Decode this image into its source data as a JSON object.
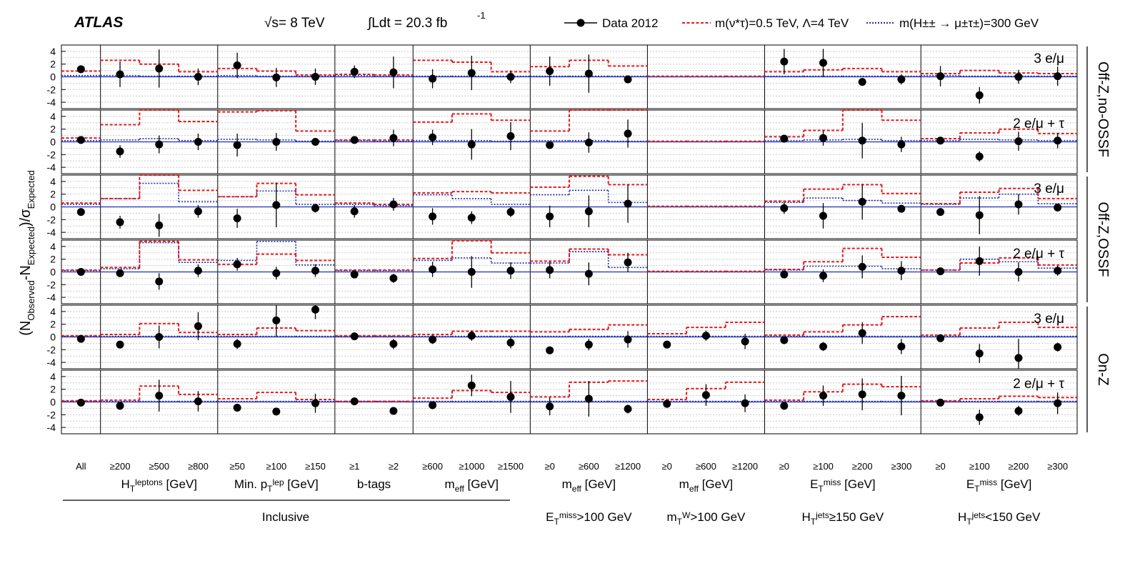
{
  "header": {
    "experiment": "ATLAS",
    "energy": "√s= 8 TeV",
    "lumi_prefix": "∫Ldt = 20.3 fb",
    "lumi_exp": "-1"
  },
  "legend": {
    "data": "Data 2012",
    "exstar": "m(ν*τ)=0.5 TeV,  Λ=4 TeV",
    "hpp": "m(H±± → μ±τ±)=300 GeV"
  },
  "colors": {
    "data": "#000000",
    "exstar": "#e41a1c",
    "hpp": "#1f2fb4",
    "zero_line": "#1f2fb4",
    "grid": "#c8c8c8"
  },
  "chart_data": {
    "type": "scatter",
    "ylabel": "(N_Observed - N_Expected)/σ_Expected",
    "ylim": [
      -5,
      5
    ],
    "yticks": [
      4,
      2,
      0,
      -2,
      -4
    ],
    "columns": [
      "All",
      "≥200",
      "≥500",
      "≥800",
      "≥50",
      "≥100",
      "≥150",
      "≥1",
      "≥2",
      "≥600",
      "≥1000",
      "≥1500",
      "≥0",
      "≥600",
      "≥1200",
      "≥0",
      "≥600",
      "≥1200",
      "≥0",
      "≥100",
      "≥200",
      "≥300",
      "≥0",
      "≥100",
      "≥200",
      "≥300"
    ],
    "groups": [
      {
        "label": "",
        "n": 1
      },
      {
        "label": "H_T^leptons [GeV]",
        "n": 3
      },
      {
        "label": "Min. p_T^lep [GeV]",
        "n": 3
      },
      {
        "label": "b-tags",
        "n": 2
      },
      {
        "label": "m_eff [GeV]",
        "n": 3
      },
      {
        "label": "m_eff [GeV]",
        "n": 3
      },
      {
        "label": "m_eff [GeV]",
        "n": 3
      },
      {
        "label": "E_T^miss [GeV]",
        "n": 4
      },
      {
        "label": "E_T^miss [GeV]",
        "n": 4
      }
    ],
    "categories": [
      "Inclusive",
      "E_T^miss>100 GeV",
      "m_T^W>100 GeV",
      "H_T^jets≥150 GeV",
      "H_T^jets<150 GeV"
    ],
    "row_groups": [
      "Off-Z,no-OSSF",
      "Off-Z,OSSF",
      "On-Z"
    ],
    "rows": [
      {
        "label": "3 e/μ",
        "data": [
          1.2,
          0.4,
          1.3,
          0.0,
          1.8,
          -0.1,
          0.0,
          0.8,
          0.7,
          -0.3,
          0.6,
          0.0,
          0.9,
          0.5,
          -0.4,
          null,
          null,
          null,
          2.4,
          2.2,
          -0.8,
          -0.4,
          0.1,
          -2.9,
          0.0,
          0.1
        ],
        "err": [
          0.5,
          2.0,
          3.0,
          1.3,
          2.0,
          1.5,
          1.3,
          1.0,
          2.5,
          1.5,
          2.7,
          1.0,
          2.3,
          3.0,
          0.6,
          null,
          null,
          null,
          2.0,
          2.2,
          0.6,
          0.8,
          1.6,
          1.3,
          1.1,
          1.5
        ],
        "exstar": [
          0.9,
          2.6,
          2.0,
          0.8,
          1.3,
          0.9,
          0.3,
          0.4,
          0.3,
          2.6,
          2.3,
          0.8,
          1.6,
          2.6,
          1.7,
          0.1,
          0.1,
          0.1,
          0.8,
          1.1,
          1.3,
          0.8,
          0.5,
          1.0,
          0.6,
          0.5
        ],
        "hpp": [
          0.2,
          0.2,
          0.1,
          0.1,
          0.2,
          0.1,
          0.1,
          0.2,
          0.1,
          0.1,
          0.1,
          0.1,
          0.1,
          0.1,
          0.1,
          0.0,
          0.0,
          0.0,
          0.1,
          0.1,
          0.1,
          0.1,
          0.2,
          0.1,
          0.1,
          0.1
        ]
      },
      {
        "label": "2 e/μ + τ",
        "data": [
          0.3,
          -1.5,
          -0.4,
          0.0,
          -0.5,
          0.0,
          0.0,
          0.3,
          0.6,
          0.7,
          -0.4,
          0.9,
          -0.5,
          -0.1,
          1.3,
          null,
          null,
          null,
          0.5,
          0.6,
          0.2,
          -0.4,
          0.2,
          -2.3,
          0.1,
          0.2
        ],
        "err": [
          0.5,
          1.0,
          1.4,
          1.3,
          1.8,
          1.4,
          0.6,
          0.5,
          1.3,
          1.2,
          2.4,
          2.2,
          0.6,
          1.6,
          2.2,
          null,
          null,
          null,
          0.5,
          1.2,
          2.8,
          1.2,
          0.5,
          0.8,
          1.5,
          1.2
        ],
        "exstar": [
          0.6,
          2.7,
          5.2,
          3.2,
          4.7,
          4.9,
          1.7,
          0.3,
          0.3,
          3.1,
          4.4,
          3.4,
          1.7,
          5.0,
          5.2,
          0.1,
          0.1,
          0.1,
          0.8,
          1.8,
          5.0,
          3.4,
          0.5,
          1.4,
          2.0,
          1.3
        ],
        "hpp": [
          0.2,
          0.3,
          0.5,
          0.2,
          0.4,
          0.3,
          0.1,
          0.2,
          0.1,
          0.2,
          0.2,
          0.1,
          0.2,
          0.2,
          0.1,
          0.0,
          0.0,
          0.0,
          0.2,
          0.3,
          0.4,
          0.2,
          0.2,
          0.4,
          0.3,
          0.2
        ]
      },
      {
        "label": "3 e/μ",
        "data": [
          -0.8,
          -2.4,
          -2.9,
          -0.7,
          -1.8,
          0.3,
          -0.2,
          -0.7,
          0.4,
          -1.5,
          -1.7,
          -0.8,
          -1.5,
          -0.7,
          0.5,
          null,
          null,
          null,
          -0.2,
          -1.4,
          0.8,
          -0.3,
          -0.8,
          -1.3,
          0.4,
          -0.1
        ],
        "err": [
          0.5,
          1.0,
          1.8,
          1.0,
          1.5,
          3.5,
          0.7,
          1.0,
          1.0,
          1.3,
          1.0,
          0.8,
          1.7,
          2.5,
          3.0,
          null,
          null,
          null,
          0.9,
          2.0,
          2.8,
          0.6,
          0.6,
          3.0,
          1.6,
          0.6
        ],
        "exstar": [
          0.6,
          1.3,
          5.2,
          2.6,
          1.6,
          3.7,
          1.9,
          0.6,
          0.4,
          2.2,
          2.4,
          2.2,
          3.1,
          4.8,
          3.5,
          0.1,
          0.1,
          0.1,
          0.9,
          2.8,
          3.5,
          2.1,
          0.5,
          2.3,
          2.9,
          1.3
        ],
        "hpp": [
          0.4,
          1.3,
          3.7,
          0.8,
          1.6,
          2.5,
          0.4,
          0.4,
          0.2,
          1.9,
          1.3,
          0.4,
          1.9,
          2.6,
          0.7,
          0.0,
          0.0,
          0.0,
          0.7,
          1.4,
          1.0,
          0.6,
          0.4,
          1.4,
          2.0,
          0.5
        ]
      },
      {
        "label": "2 e/μ + τ",
        "data": [
          0.0,
          -0.2,
          -1.5,
          0.2,
          1.2,
          -0.2,
          0.2,
          -0.4,
          -1.0,
          0.4,
          0.0,
          0.2,
          0.3,
          -0.3,
          1.5,
          null,
          null,
          null,
          -0.4,
          -0.6,
          0.8,
          0.2,
          0.1,
          1.7,
          0.0,
          0.2
        ],
        "err": [
          0.4,
          0.5,
          1.3,
          1.0,
          1.0,
          1.0,
          1.0,
          0.6,
          0.7,
          1.2,
          2.5,
          1.3,
          1.3,
          1.8,
          1.5,
          null,
          null,
          null,
          0.5,
          1.0,
          1.8,
          1.5,
          0.4,
          2.3,
          1.5,
          0.8
        ],
        "exstar": [
          0.3,
          0.7,
          4.8,
          1.9,
          1.2,
          2.8,
          1.8,
          0.3,
          0.3,
          2.1,
          4.9,
          3.0,
          1.7,
          3.6,
          2.7,
          0.1,
          0.1,
          0.1,
          0.4,
          1.6,
          3.7,
          2.3,
          0.3,
          1.4,
          2.2,
          1.1
        ],
        "hpp": [
          0.2,
          0.5,
          4.6,
          1.5,
          1.8,
          4.8,
          1.1,
          0.2,
          0.2,
          1.8,
          2.2,
          1.4,
          1.4,
          3.2,
          0.7,
          0.0,
          0.0,
          0.0,
          0.3,
          0.9,
          0.9,
          0.5,
          0.3,
          2.0,
          1.6,
          0.6
        ]
      },
      {
        "label": "3 e/μ",
        "data": [
          -0.3,
          -1.2,
          0.0,
          1.7,
          -1.1,
          2.6,
          4.3,
          0.1,
          -1.1,
          -0.4,
          0.2,
          -0.9,
          -2.1,
          -1.2,
          -0.4,
          -1.2,
          0.2,
          -0.7,
          -0.5,
          -1.5,
          0.6,
          -1.5,
          -0.2,
          -2.6,
          -3.3,
          -1.6
        ],
        "err": [
          0.5,
          0.6,
          1.8,
          2.2,
          0.8,
          2.5,
          1.5,
          0.5,
          0.8,
          0.7,
          0.8,
          0.9,
          0.6,
          0.9,
          1.3,
          0.6,
          0.8,
          1.2,
          0.6,
          0.7,
          1.7,
          1.2,
          0.5,
          1.5,
          3.0,
          0.7
        ],
        "exstar": [
          0.2,
          0.4,
          2.1,
          0.7,
          0.4,
          1.4,
          1.0,
          0.2,
          0.2,
          0.4,
          0.9,
          0.9,
          0.8,
          1.2,
          1.9,
          0.5,
          1.5,
          2.3,
          0.3,
          0.8,
          1.9,
          3.2,
          0.3,
          1.4,
          2.3,
          1.5
        ],
        "hpp": [
          0.1,
          0.1,
          0.1,
          0.1,
          0.1,
          0.1,
          0.1,
          0.1,
          0.1,
          0.1,
          0.1,
          0.1,
          0.1,
          0.1,
          0.1,
          0.1,
          0.1,
          0.1,
          0.1,
          0.1,
          0.1,
          0.1,
          0.1,
          0.1,
          0.1,
          0.1
        ]
      },
      {
        "label": "2 e/μ + τ",
        "data": [
          -0.1,
          -0.6,
          1.0,
          0.1,
          -0.9,
          -1.5,
          -0.2,
          0.1,
          -1.4,
          -0.5,
          2.6,
          0.8,
          -0.7,
          0.5,
          -1.1,
          -0.3,
          1.1,
          -0.2,
          -0.6,
          1.0,
          1.2,
          1.0,
          -0.1,
          -2.4,
          -1.4,
          -0.2
        ],
        "err": [
          0.4,
          0.5,
          2.5,
          1.6,
          0.5,
          0.6,
          1.5,
          0.4,
          0.5,
          0.6,
          1.7,
          2.5,
          1.4,
          2.8,
          0.7,
          0.5,
          1.7,
          1.4,
          0.5,
          1.6,
          2.5,
          3.1,
          0.4,
          1.2,
          0.8,
          1.7
        ],
        "exstar": [
          0.2,
          0.3,
          2.5,
          1.2,
          0.5,
          1.5,
          0.4,
          0.1,
          0.1,
          0.6,
          1.8,
          1.5,
          0.8,
          3.1,
          3.3,
          0.4,
          2.1,
          3.1,
          0.3,
          1.6,
          2.8,
          2.4,
          0.2,
          0.5,
          0.9,
          0.7
        ],
        "hpp": [
          0.1,
          0.1,
          0.1,
          0.1,
          0.1,
          0.1,
          0.1,
          0.1,
          0.1,
          0.1,
          0.1,
          0.1,
          0.1,
          0.1,
          0.1,
          0.1,
          0.1,
          0.1,
          0.1,
          0.1,
          0.1,
          0.1,
          0.1,
          0.1,
          0.1,
          0.1
        ]
      }
    ]
  }
}
